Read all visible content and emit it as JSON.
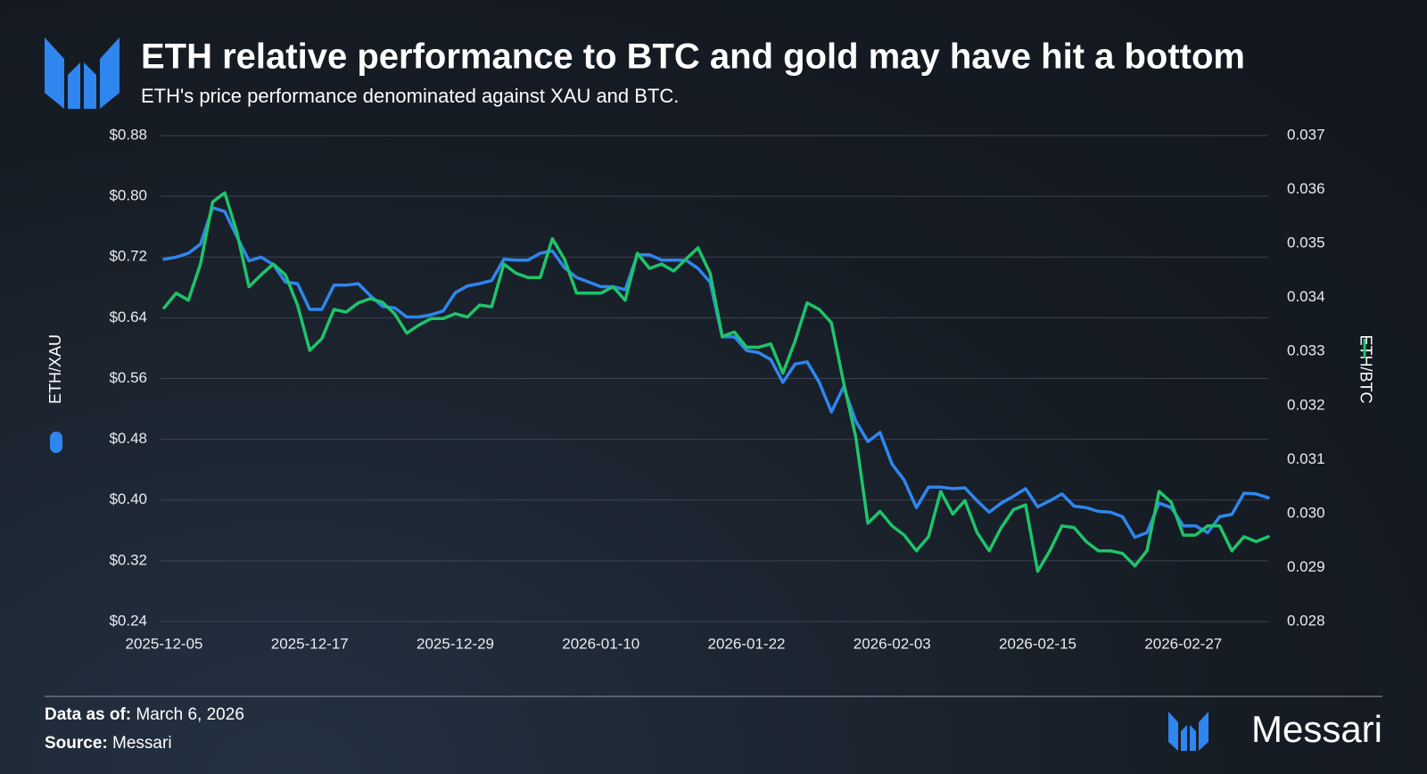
{
  "chart_data": {
    "type": "line",
    "title": "ETH relative performance to BTC and gold may have hit a bottom",
    "subtitle": "ETH's price performance denominated against XAU and BTC.",
    "x": [
      "2025-12-05",
      "2025-12-06",
      "2025-12-07",
      "2025-12-08",
      "2025-12-09",
      "2025-12-10",
      "2025-12-11",
      "2025-12-12",
      "2025-12-13",
      "2025-12-14",
      "2025-12-15",
      "2025-12-16",
      "2025-12-17",
      "2025-12-18",
      "2025-12-19",
      "2025-12-20",
      "2025-12-21",
      "2025-12-22",
      "2025-12-23",
      "2025-12-24",
      "2025-12-25",
      "2025-12-26",
      "2025-12-27",
      "2025-12-28",
      "2025-12-29",
      "2025-12-30",
      "2025-12-31",
      "2026-01-01",
      "2026-01-02",
      "2026-01-03",
      "2026-01-04",
      "2026-01-05",
      "2026-01-06",
      "2026-01-07",
      "2026-01-08",
      "2026-01-09",
      "2026-01-10",
      "2026-01-11",
      "2026-01-12",
      "2026-01-13",
      "2026-01-14",
      "2026-01-15",
      "2026-01-16",
      "2026-01-17",
      "2026-01-18",
      "2026-01-19",
      "2026-01-20",
      "2026-01-21",
      "2026-01-22",
      "2026-01-23",
      "2026-01-24",
      "2026-01-25",
      "2026-01-26",
      "2026-01-27",
      "2026-01-28",
      "2026-01-29",
      "2026-01-30",
      "2026-01-31",
      "2026-02-01",
      "2026-02-02",
      "2026-02-03",
      "2026-02-04",
      "2026-02-05",
      "2026-02-06",
      "2026-02-07",
      "2026-02-08",
      "2026-02-09",
      "2026-02-10",
      "2026-02-11",
      "2026-02-12",
      "2026-02-13",
      "2026-02-14",
      "2026-02-15",
      "2026-02-16",
      "2026-02-17",
      "2026-02-18",
      "2026-02-19",
      "2026-02-20",
      "2026-02-21",
      "2026-02-22",
      "2026-02-23",
      "2026-02-24",
      "2026-02-25",
      "2026-02-26",
      "2026-02-27",
      "2026-02-28",
      "2026-03-01",
      "2026-03-02",
      "2026-03-03",
      "2026-03-04",
      "2026-03-05",
      "2026-03-06"
    ],
    "xticks": [
      "2025-12-05",
      "2025-12-17",
      "2025-12-29",
      "2026-01-10",
      "2026-01-22",
      "2026-02-03",
      "2026-02-15",
      "2026-02-27"
    ],
    "series": [
      {
        "name": "ETH/XAU",
        "color": "#2f86ee",
        "axis": "y",
        "values": [
          0.717,
          0.72,
          0.725,
          0.737,
          0.785,
          0.78,
          0.747,
          0.715,
          0.72,
          0.71,
          0.687,
          0.685,
          0.651,
          0.651,
          0.683,
          0.683,
          0.685,
          0.669,
          0.655,
          0.653,
          0.641,
          0.641,
          0.644,
          0.649,
          0.673,
          0.682,
          0.685,
          0.689,
          0.717,
          0.716,
          0.716,
          0.725,
          0.728,
          0.706,
          0.693,
          0.687,
          0.681,
          0.681,
          0.677,
          0.723,
          0.723,
          0.716,
          0.716,
          0.716,
          0.705,
          0.687,
          0.615,
          0.615,
          0.597,
          0.594,
          0.585,
          0.555,
          0.579,
          0.582,
          0.555,
          0.516,
          0.549,
          0.504,
          0.477,
          0.489,
          0.447,
          0.426,
          0.39,
          0.417,
          0.417,
          0.415,
          0.416,
          0.399,
          0.384,
          0.396,
          0.405,
          0.415,
          0.391,
          0.399,
          0.408,
          0.392,
          0.39,
          0.385,
          0.384,
          0.378,
          0.351,
          0.357,
          0.396,
          0.39,
          0.366,
          0.366,
          0.357,
          0.378,
          0.381,
          0.409,
          0.408,
          0.403
        ]
      },
      {
        "name": "ETH/BTC",
        "color": "#1ec46a",
        "axis": "y2",
        "values": [
          0.03381,
          0.03408,
          0.03395,
          0.03462,
          0.03577,
          0.03594,
          0.03521,
          0.0342,
          0.03442,
          0.03462,
          0.03442,
          0.03386,
          0.03302,
          0.03324,
          0.03378,
          0.03373,
          0.0339,
          0.03398,
          0.03391,
          0.0337,
          0.03334,
          0.03349,
          0.03361,
          0.03361,
          0.0337,
          0.03364,
          0.03386,
          0.03383,
          0.03462,
          0.03445,
          0.03437,
          0.03437,
          0.03509,
          0.03471,
          0.03408,
          0.03408,
          0.03408,
          0.0342,
          0.03395,
          0.03482,
          0.03454,
          0.03462,
          0.03449,
          0.03471,
          0.03492,
          0.03445,
          0.03328,
          0.03336,
          0.03308,
          0.03308,
          0.03314,
          0.0326,
          0.03319,
          0.0339,
          0.03378,
          0.03353,
          0.03243,
          0.03142,
          0.02982,
          0.03004,
          0.02977,
          0.0296,
          0.02931,
          0.02957,
          0.03041,
          0.02999,
          0.03024,
          0.02965,
          0.02931,
          0.02974,
          0.03007,
          0.03016,
          0.02893,
          0.02931,
          0.02977,
          0.02974,
          0.02948,
          0.02931,
          0.02931,
          0.02926,
          0.02903,
          0.02931,
          0.03041,
          0.03021,
          0.0296,
          0.0296,
          0.02977,
          0.02977,
          0.02931,
          0.02957,
          0.02948,
          0.02957
        ]
      }
    ],
    "ylim": [
      0.24,
      0.88
    ],
    "yticks": [
      {
        "value": 0.24,
        "label": "$0.24"
      },
      {
        "value": 0.32,
        "label": "$0.32"
      },
      {
        "value": 0.4,
        "label": "$0.40"
      },
      {
        "value": 0.48,
        "label": "$0.48"
      },
      {
        "value": 0.56,
        "label": "$0.56"
      },
      {
        "value": 0.64,
        "label": "$0.64"
      },
      {
        "value": 0.72,
        "label": "$0.72"
      },
      {
        "value": 0.8,
        "label": "$0.80"
      },
      {
        "value": 0.88,
        "label": "$0.88"
      }
    ],
    "y2lim": [
      0.028,
      0.037
    ],
    "y2ticks": [
      0.028,
      0.029,
      {
        "value": 0.03,
        "label": "0.030"
      },
      0.031,
      0.032,
      0.033,
      0.034,
      0.035,
      0.036,
      0.037
    ],
    "grid": true
  },
  "footer": {
    "date_label": "Data as of:",
    "date": "March 6, 2026",
    "source_label": "Source:",
    "source": "Messari",
    "brand": "Messari"
  }
}
